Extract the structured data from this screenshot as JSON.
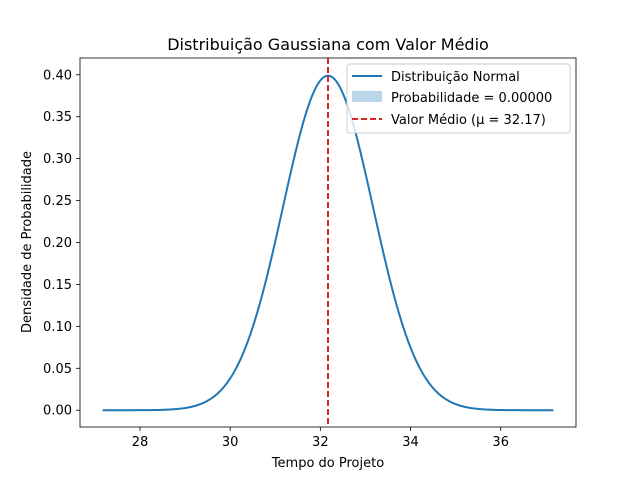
{
  "chart_data": {
    "type": "line",
    "title": "Distribuição Gaussiana com Valor Médio",
    "xlabel": "Tempo do Projeto",
    "ylabel": "Densidade de Probabilidade",
    "xlim": [
      26.67,
      37.67
    ],
    "ylim": [
      -0.02,
      0.42
    ],
    "x_ticks": [
      28,
      30,
      32,
      34,
      36
    ],
    "y_ticks": [
      0.0,
      0.05,
      0.1,
      0.15,
      0.2,
      0.25,
      0.3,
      0.35,
      0.4
    ],
    "x_tick_labels": [
      "28",
      "30",
      "32",
      "34",
      "36"
    ],
    "y_tick_labels": [
      "0.00",
      "0.05",
      "0.10",
      "0.15",
      "0.20",
      "0.25",
      "0.30",
      "0.35",
      "0.40"
    ],
    "grid": false,
    "legend_position": "upper-right",
    "series": [
      {
        "name": "Distribuição Normal",
        "color": "#1f77b4",
        "distribution": {
          "mean": 32.17,
          "std": 1.0,
          "x_min": 27.17,
          "x_max": 37.17
        }
      }
    ],
    "fill_region": {
      "name": "Probabilidade = 0.00000",
      "color": "#1f77b4",
      "opacity": 0.3
    },
    "mean_line": {
      "name": "Valor Médio (μ = 32.17)",
      "x": 32.17,
      "color": "#d62728",
      "style": "dashed"
    },
    "legend": [
      "Distribuição Normal",
      "Probabilidade = 0.00000",
      "Valor Médio (μ = 32.17)"
    ]
  }
}
